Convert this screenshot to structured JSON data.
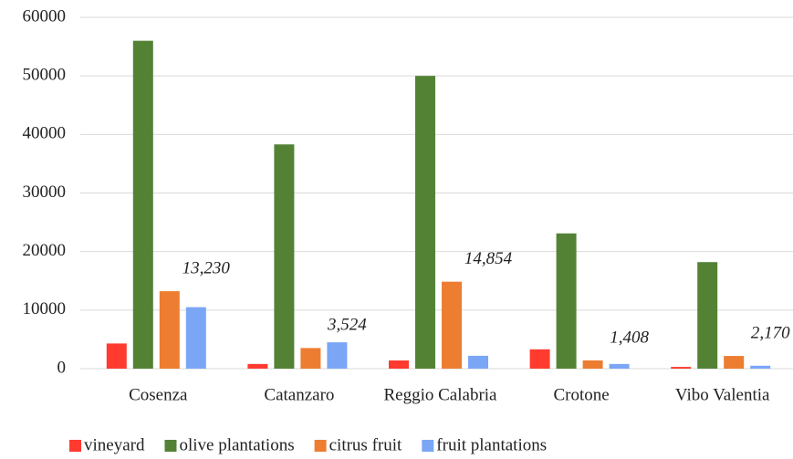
{
  "chart_data": {
    "type": "bar",
    "categories": [
      "Cosenza",
      "Catanzaro",
      "Reggio Calabria",
      "Crotone",
      "Vibo Valentia"
    ],
    "series": [
      {
        "name": "vineyard",
        "color": "#ff3b30",
        "values": [
          4300,
          800,
          1400,
          3300,
          300
        ]
      },
      {
        "name": "olive plantations",
        "color": "#548235",
        "values": [
          56000,
          38300,
          50000,
          23100,
          18200
        ]
      },
      {
        "name": "citrus fruit",
        "color": "#ed7d31",
        "values": [
          13230,
          3524,
          14854,
          1408,
          2170
        ],
        "value_labels": [
          "13,230",
          "3,524",
          "14,854",
          "1,408",
          "2,170"
        ]
      },
      {
        "name": "fruit plantations",
        "color": "#7aa6f5",
        "values": [
          10500,
          4500,
          2200,
          800,
          500
        ]
      }
    ],
    "ylim": [
      0,
      60000
    ],
    "yticks": [
      0,
      10000,
      20000,
      30000,
      40000,
      50000,
      60000
    ],
    "grid": true,
    "legend": "bottom"
  }
}
